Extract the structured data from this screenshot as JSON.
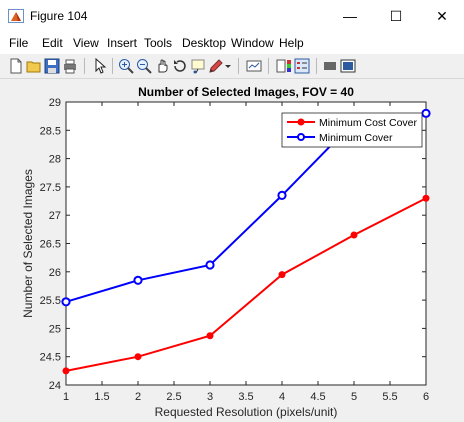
{
  "window": {
    "title": "Figure 104",
    "minimize_glyph": "—",
    "maximize_glyph": "☐",
    "close_glyph": "✕"
  },
  "menu": {
    "items": [
      "File",
      "Edit",
      "View",
      "Insert",
      "Tools",
      "Desktop",
      "Window",
      "Help"
    ]
  },
  "toolbar": {
    "icons": [
      "new-figure-icon",
      "open-file-icon",
      "save-icon",
      "print-icon",
      "edit-plot-arrow-icon",
      "zoom-in-icon",
      "zoom-out-icon",
      "pan-icon",
      "rotate-3d-icon",
      "data-cursor-icon",
      "brush-icon",
      "brush-dropdown-icon",
      "link-plot-icon",
      "colorbar-icon",
      "legend-icon",
      "hide-plot-tools-icon",
      "show-plot-tools-icon"
    ]
  },
  "colors": {
    "series_red": "#ff0000",
    "series_blue": "#0000ff",
    "figure_bg": "#f0f0f0",
    "axes_bg": "#ffffff"
  },
  "chart_data": {
    "type": "line",
    "title": "Number of Selected Images, FOV = 40",
    "xlabel": "Requested Resolution (pixels/unit)",
    "ylabel": "Number of Selected Images",
    "xlim": [
      1,
      6
    ],
    "ylim": [
      24,
      29
    ],
    "xticks": [
      "1",
      "1.5",
      "2",
      "2.5",
      "3",
      "3.5",
      "4",
      "4.5",
      "5",
      "5.5",
      "6"
    ],
    "yticks": [
      "24",
      "24.5",
      "25",
      "25.5",
      "26",
      "26.5",
      "27",
      "27.5",
      "28",
      "28.5",
      "29"
    ],
    "x": [
      1,
      2,
      3,
      4,
      5,
      6
    ],
    "series": [
      {
        "name": "Minimum Cost Cover",
        "color": "#ff0000",
        "marker": "filled-circle",
        "values": [
          24.25,
          24.5,
          24.87,
          25.95,
          26.65,
          27.3
        ]
      },
      {
        "name": "Minimum Cover",
        "color": "#0000ff",
        "marker": "open-circle",
        "values": [
          25.47,
          25.85,
          26.12,
          27.35,
          28.65,
          28.8
        ]
      }
    ],
    "legend_position": "top-right",
    "grid": false
  }
}
